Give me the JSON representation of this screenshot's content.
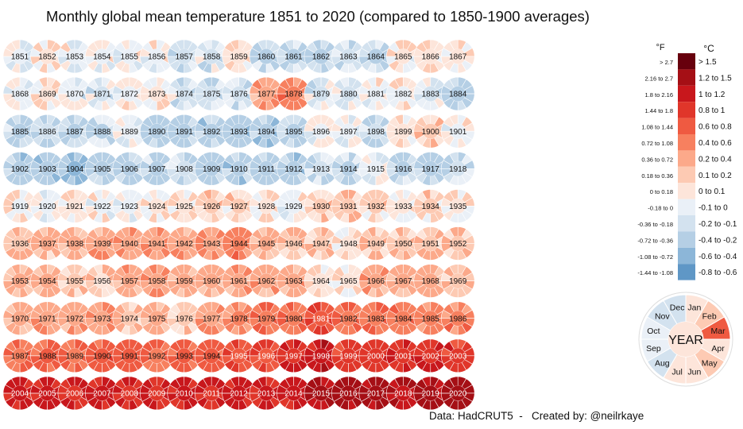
{
  "title": "Monthly global mean temperature 1851 to 2020 (compared to 1850-1900 averages)",
  "credit": "Data: HadCRUT5  -   Created by: @neilrkaye",
  "legend": {
    "f_header": "°F",
    "c_header": "°C",
    "bins": [
      {
        "f": "> 2.7",
        "c": "> 1.5",
        "color": "#67000d"
      },
      {
        "f": "2.16 to 2.7",
        "c": "1.2 to 1.5",
        "color": "#a50f15"
      },
      {
        "f": "1.8 to 2.16",
        "c": "1 to 1.2",
        "color": "#c8171c"
      },
      {
        "f": "1.44 to 1.8",
        "c": "0.8 to 1",
        "color": "#e0362a"
      },
      {
        "f": "1.08 to 1.44",
        "c": "0.6 to 0.8",
        "color": "#ef5a41"
      },
      {
        "f": "0.72 to 1.08",
        "c": "0.4 to 0.6",
        "color": "#f7805f"
      },
      {
        "f": "0.36 to 0.72",
        "c": "0.2 to 0.4",
        "color": "#fca98a"
      },
      {
        "f": "0.18 to 0.36",
        "c": "0.1 to 0.2",
        "color": "#fdcab3"
      },
      {
        "f": "0 to 0.18",
        "c": "0 to 0.1",
        "color": "#fde5da"
      },
      {
        "f": "-0.18 to 0",
        "c": "-0.1 to 0",
        "color": "#eaf0f7"
      },
      {
        "f": "-0.36 to -0.18",
        "c": "-0.2 to -0.1",
        "color": "#d3e2ef"
      },
      {
        "f": "-0.72 to -0.36",
        "c": "-0.4 to -0.2",
        "color": "#b5cfe5"
      },
      {
        "f": "-1.08 to -0.72",
        "c": "-0.6 to -0.4",
        "color": "#8cb6d8"
      },
      {
        "f": "-1.44 to -1.08",
        "c": "-0.8 to -0.6",
        "color": "#5f97c6"
      }
    ]
  },
  "key": {
    "center": "YEAR",
    "months": [
      "Jan",
      "Feb",
      "Mar",
      "Apr",
      "May",
      "Jun",
      "Jul",
      "Aug",
      "Sep",
      "Oct",
      "Nov",
      "Dec"
    ],
    "month_colors": [
      "#fde5da",
      "#fdcab3",
      "#ef5a41",
      "#fde5da",
      "#fdcab3",
      "#fde5da",
      "#fde5da",
      "#d3e2ef",
      "#eaf0f7",
      "#eaf0f7",
      "#d3e2ef",
      "#d3e2ef"
    ]
  },
  "chart_data": {
    "type": "heatmap",
    "title": "Monthly global mean temperature 1851 to 2020 (compared to 1850-1900 averages)",
    "unit": "°C anomaly",
    "layout": "one polar ring per year, 12 month segments clockwise from Jan at top",
    "year_start": 1851,
    "year_end": 2020,
    "annual_anomaly": [
      -0.05,
      0.05,
      -0.02,
      0.0,
      0.0,
      0.0,
      -0.18,
      -0.1,
      0.05,
      -0.2,
      -0.2,
      -0.25,
      -0.15,
      -0.2,
      0.02,
      0.05,
      0.02,
      -0.05,
      0.05,
      -0.08,
      -0.1,
      0.0,
      0.05,
      -0.1,
      -0.15,
      -0.15,
      0.3,
      0.5,
      -0.1,
      -0.1,
      0.0,
      0.0,
      -0.1,
      -0.2,
      -0.22,
      -0.18,
      -0.25,
      -0.2,
      -0.05,
      -0.3,
      -0.25,
      -0.3,
      -0.35,
      -0.3,
      -0.25,
      -0.05,
      -0.05,
      -0.18,
      0.05,
      0.12,
      0.0,
      -0.3,
      -0.35,
      -0.4,
      -0.28,
      -0.25,
      -0.2,
      -0.18,
      -0.25,
      -0.28,
      -0.3,
      -0.3,
      -0.18,
      -0.2,
      -0.05,
      -0.2,
      -0.25,
      -0.15,
      0.0,
      -0.05,
      0.05,
      0.0,
      0.0,
      0.05,
      0.05,
      0.12,
      0.12,
      0.05,
      0.0,
      0.15,
      0.15,
      0.12,
      0.05,
      0.12,
      0.05,
      0.15,
      0.22,
      0.22,
      0.3,
      0.35,
      0.35,
      0.3,
      0.35,
      0.5,
      0.25,
      0.2,
      0.2,
      0.1,
      0.2,
      0.15,
      0.2,
      0.2,
      0.28,
      0.25,
      0.12,
      0.1,
      0.3,
      0.35,
      0.3,
      0.25,
      0.3,
      0.3,
      0.3,
      0.05,
      0.05,
      0.28,
      0.28,
      0.28,
      0.2,
      0.25,
      0.35,
      0.3,
      0.35,
      0.2,
      0.25,
      0.12,
      0.35,
      0.45,
      0.6,
      0.55,
      0.8,
      0.6,
      0.55,
      0.55,
      0.5,
      0.5,
      0.6,
      0.65,
      0.6,
      0.7,
      0.7,
      0.6,
      0.65,
      0.65,
      0.8,
      0.8,
      0.95,
      1.1,
      0.9,
      0.95,
      0.95,
      0.95,
      0.9,
      1.05,
      1.05,
      1.0,
      1.05,
      1.0,
      1.0,
      1.05,
      1.0,
      1.05,
      1.05,
      1.1,
      1.25,
      1.3,
      1.25,
      1.15,
      1.25,
      1.3
    ]
  }
}
